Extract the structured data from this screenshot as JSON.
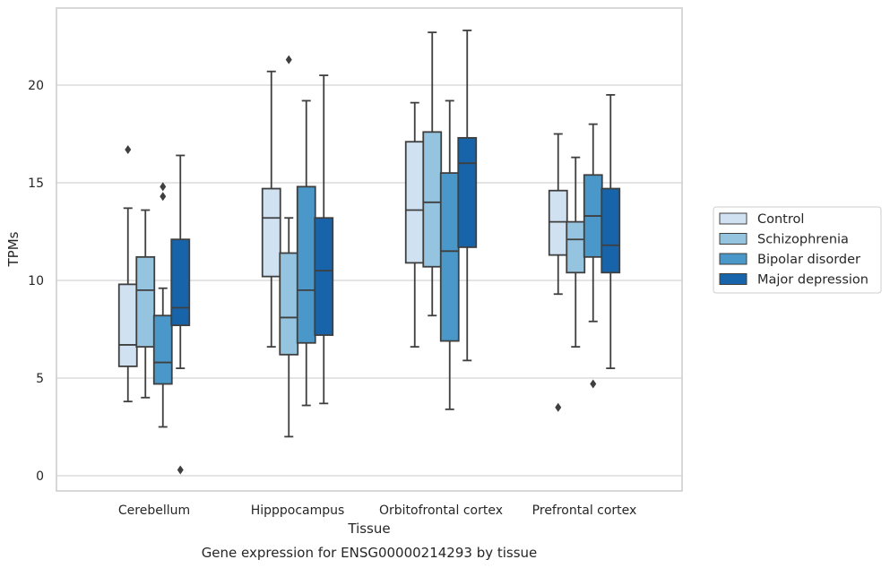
{
  "chart_data": {
    "type": "boxplot",
    "title": "",
    "caption": "Gene expression for ENSG00000214293 by tissue",
    "xlabel": "Tissue",
    "ylabel": "TPMs",
    "ylim": [
      -0.7,
      24
    ],
    "yticks": [
      0,
      5,
      10,
      15,
      20
    ],
    "grid": "horizontal",
    "legend_position": "right",
    "categories": [
      "Cerebellum",
      "Hipppocampus",
      "Orbitofrontal cortex",
      "Prefrontal cortex"
    ],
    "series": [
      {
        "name": "Control",
        "color": "#d0e1f2",
        "boxes": [
          {
            "whislo": 3.8,
            "q1": 5.6,
            "med": 6.7,
            "q3": 9.8,
            "whishi": 13.7,
            "fliers": [
              16.7
            ]
          },
          {
            "whislo": 6.6,
            "q1": 10.2,
            "med": 13.2,
            "q3": 14.7,
            "whishi": 20.7,
            "fliers": []
          },
          {
            "whislo": 6.6,
            "q1": 10.9,
            "med": 13.6,
            "q3": 17.1,
            "whishi": 19.1,
            "fliers": []
          },
          {
            "whislo": 9.3,
            "q1": 11.3,
            "med": 13.0,
            "q3": 14.6,
            "whishi": 17.5,
            "fliers": [
              3.5
            ]
          }
        ]
      },
      {
        "name": "Schizophrenia",
        "color": "#94c4df",
        "boxes": [
          {
            "whislo": 4.0,
            "q1": 6.6,
            "med": 9.5,
            "q3": 11.2,
            "whishi": 13.6,
            "fliers": []
          },
          {
            "whislo": 2.0,
            "q1": 6.2,
            "med": 8.1,
            "q3": 11.4,
            "whishi": 13.2,
            "fliers": [
              21.3
            ]
          },
          {
            "whislo": 8.2,
            "q1": 10.7,
            "med": 14.0,
            "q3": 17.6,
            "whishi": 22.7,
            "fliers": []
          },
          {
            "whislo": 6.6,
            "q1": 10.4,
            "med": 12.1,
            "q3": 13.0,
            "whishi": 16.3,
            "fliers": []
          }
        ]
      },
      {
        "name": "Bipolar disorder",
        "color": "#4a98c9",
        "boxes": [
          {
            "whislo": 2.5,
            "q1": 4.7,
            "med": 5.8,
            "q3": 8.2,
            "whishi": 9.6,
            "fliers": [
              14.3,
              14.8
            ]
          },
          {
            "whislo": 3.6,
            "q1": 6.8,
            "med": 9.5,
            "q3": 14.8,
            "whishi": 19.2,
            "fliers": []
          },
          {
            "whislo": 3.4,
            "q1": 6.9,
            "med": 11.5,
            "q3": 15.5,
            "whishi": 19.2,
            "fliers": []
          },
          {
            "whislo": 7.9,
            "q1": 11.2,
            "med": 13.3,
            "q3": 15.4,
            "whishi": 18.0,
            "fliers": [
              4.7
            ]
          }
        ]
      },
      {
        "name": "Major depression",
        "color": "#1764ab",
        "boxes": [
          {
            "whislo": 5.5,
            "q1": 7.7,
            "med": 8.6,
            "q3": 12.1,
            "whishi": 16.4,
            "fliers": [
              0.3
            ]
          },
          {
            "whislo": 3.7,
            "q1": 7.2,
            "med": 10.5,
            "q3": 13.2,
            "whishi": 20.5,
            "fliers": []
          },
          {
            "whislo": 5.9,
            "q1": 11.7,
            "med": 16.0,
            "q3": 17.3,
            "whishi": 22.8,
            "fliers": []
          },
          {
            "whislo": 5.5,
            "q1": 10.4,
            "med": 11.8,
            "q3": 14.7,
            "whishi": 19.5,
            "fliers": []
          }
        ]
      }
    ]
  }
}
